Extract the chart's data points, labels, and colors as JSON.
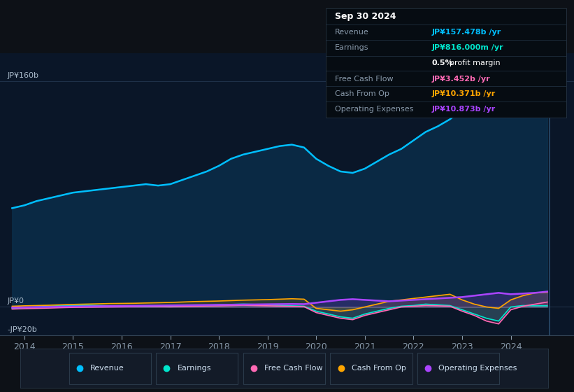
{
  "bg_color": "#0d1117",
  "chart_bg": "#0a1628",
  "title": "Sep 30 2024",
  "tooltip": {
    "Revenue": "JP¥157.478b /yr",
    "Earnings": "JP¥816.000m /yr",
    "profit_margin": "0.5% profit margin",
    "FreeCashFlow": "JP¥3.452b /yr",
    "CashFromOp": "JP¥10.371b /yr",
    "OperatingExpenses": "JP¥10.873b /yr"
  },
  "tooltip_colors": {
    "Revenue": "#00bfff",
    "Earnings": "#00e5cc",
    "FreeCashFlow": "#ff69b4",
    "CashFromOp": "#ffa500",
    "OperatingExpenses": "#aa44ff"
  },
  "ylim": [
    -20,
    180
  ],
  "xlim_start": 2013.5,
  "xlim_end": 2025.3,
  "xticks": [
    2014,
    2015,
    2016,
    2017,
    2018,
    2019,
    2020,
    2021,
    2022,
    2023,
    2024
  ],
  "legend": [
    {
      "label": "Revenue",
      "color": "#00bfff"
    },
    {
      "label": "Earnings",
      "color": "#00e5cc"
    },
    {
      "label": "Free Cash Flow",
      "color": "#ff69b4"
    },
    {
      "label": "Cash From Op",
      "color": "#ffa500"
    },
    {
      "label": "Operating Expenses",
      "color": "#aa44ff"
    }
  ],
  "series": {
    "years": [
      2013.75,
      2014.0,
      2014.25,
      2014.5,
      2014.75,
      2015.0,
      2015.25,
      2015.5,
      2015.75,
      2016.0,
      2016.25,
      2016.5,
      2016.75,
      2017.0,
      2017.25,
      2017.5,
      2017.75,
      2018.0,
      2018.25,
      2018.5,
      2018.75,
      2019.0,
      2019.25,
      2019.5,
      2019.75,
      2020.0,
      2020.25,
      2020.5,
      2020.75,
      2021.0,
      2021.25,
      2021.5,
      2021.75,
      2022.0,
      2022.25,
      2022.5,
      2022.75,
      2023.0,
      2023.25,
      2023.5,
      2023.75,
      2024.0,
      2024.25,
      2024.5,
      2024.75
    ],
    "revenue": [
      70,
      72,
      75,
      77,
      79,
      81,
      82,
      83,
      84,
      85,
      86,
      87,
      86,
      87,
      90,
      93,
      96,
      100,
      105,
      108,
      110,
      112,
      114,
      115,
      113,
      105,
      100,
      96,
      95,
      98,
      103,
      108,
      112,
      118,
      124,
      128,
      133,
      140,
      148,
      152,
      155,
      157,
      158,
      159,
      157.5
    ],
    "earnings": [
      -1,
      -0.5,
      0,
      0.5,
      1,
      1,
      1.2,
      1.0,
      0.8,
      0.5,
      0.3,
      0.2,
      0.3,
      0.5,
      0.8,
      1.0,
      1.2,
      1.5,
      1.8,
      2.0,
      1.8,
      1.5,
      1.2,
      0.8,
      0.5,
      -3,
      -5,
      -7,
      -8,
      -5,
      -3,
      -1,
      0.5,
      1,
      2,
      1.5,
      1,
      -2,
      -5,
      -8,
      -10,
      0,
      1,
      0.8,
      0.816
    ],
    "free_cash_flow": [
      -1.5,
      -1.2,
      -1.0,
      -0.8,
      -0.5,
      -0.3,
      -0.2,
      -0.1,
      0.0,
      0.1,
      0.2,
      0.3,
      0.2,
      0.1,
      0.3,
      0.5,
      0.7,
      0.8,
      1.0,
      1.2,
      1.0,
      0.8,
      0.6,
      0.4,
      0.2,
      -4,
      -6,
      -8,
      -9,
      -6,
      -4,
      -2,
      0,
      0.5,
      1,
      0.8,
      0.5,
      -3,
      -6,
      -10,
      -12,
      -2,
      0.5,
      2,
      3.452
    ],
    "cash_from_op": [
      0.5,
      0.8,
      1.0,
      1.2,
      1.5,
      1.8,
      2.0,
      2.2,
      2.4,
      2.5,
      2.6,
      2.8,
      3.0,
      3.2,
      3.5,
      3.8,
      4.0,
      4.2,
      4.5,
      4.8,
      5.0,
      5.2,
      5.5,
      5.8,
      5.5,
      -1,
      -2,
      -3,
      -2,
      0,
      2,
      4,
      5,
      6,
      7,
      8,
      9,
      5,
      2,
      0,
      -1,
      5,
      8,
      10,
      10.371
    ],
    "operating_expenses": [
      -0.5,
      -0.3,
      -0.1,
      0.0,
      0.2,
      0.3,
      0.4,
      0.5,
      0.6,
      0.7,
      0.8,
      0.9,
      1.0,
      1.1,
      1.2,
      1.3,
      1.4,
      1.5,
      1.6,
      1.7,
      1.8,
      1.9,
      2.0,
      2.1,
      2.0,
      3,
      4,
      5,
      5.5,
      5,
      4.5,
      4,
      4.5,
      5,
      5.5,
      6,
      6.5,
      7,
      8,
      9,
      10,
      9,
      9.5,
      10,
      10.873
    ]
  }
}
